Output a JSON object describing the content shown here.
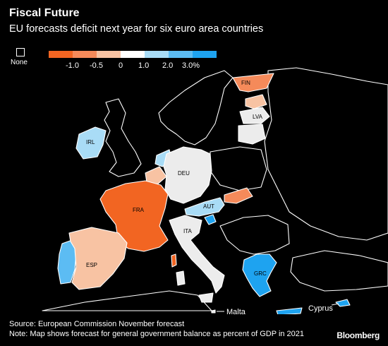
{
  "header": {
    "title": "Fiscal Future",
    "subtitle": "EU forecasts deficit next year for six euro area countries"
  },
  "legend": {
    "none_label": "None",
    "ticks": [
      "-1.0",
      "-0.5",
      "0",
      "1.0",
      "2.0",
      "3.0%"
    ],
    "colors": [
      "#f26522",
      "#f58a5a",
      "#f8c3a3",
      "#ffffff",
      "#a9dcf6",
      "#5cbcf3",
      "#1ea3f0"
    ]
  },
  "countries": {
    "fin": "FIN",
    "lva": "LVA",
    "irl": "IRL",
    "deu": "DEU",
    "fra": "FRA",
    "aut": "AUT",
    "ita": "ITA",
    "esp": "ESP",
    "grc": "GRC"
  },
  "outside_labels": {
    "malta": "Malta",
    "cyprus": "Cyprus"
  },
  "footer": {
    "source": "Source: European Commission November forecast",
    "note": "Note: Map shows forecast for general government balance as percent of GDP in 2021",
    "brand": "Bloomberg"
  },
  "colors": {
    "deep_orange": "#f26522",
    "mid_orange": "#f58a5a",
    "peach": "#f8c3a3",
    "light_gray": "#ececec",
    "light_blue": "#a9dcf6",
    "bright_blue": "#1ea3f0"
  }
}
